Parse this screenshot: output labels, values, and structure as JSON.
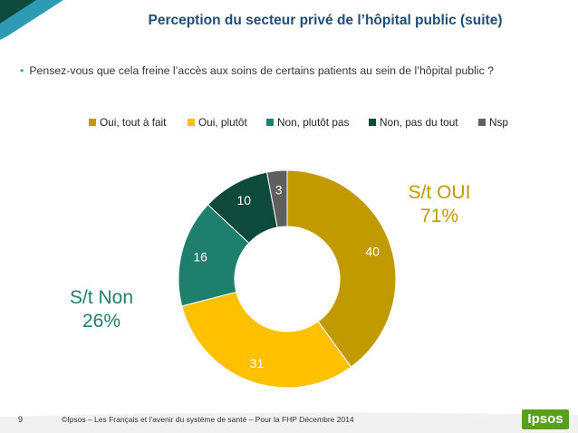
{
  "header": {
    "title": "Perception du secteur privé de l’hôpital public (suite)"
  },
  "question": {
    "bullet": "•",
    "text": "Pensez-vous que cela freine l’accès aux soins de certains patients au sein de l’hôpital public ?"
  },
  "chart_data": {
    "type": "pie",
    "donut": true,
    "categories": [
      "Oui, tout à fait",
      "Oui, plutôt",
      "Non, plutôt pas",
      "Non, pas du tout",
      "Nsp"
    ],
    "values": [
      40,
      31,
      16,
      10,
      3
    ],
    "colors": [
      "#c19a00",
      "#ffc000",
      "#1e7f6c",
      "#0d4a3c",
      "#5f5f5f"
    ],
    "label_colors": [
      "#ffffff",
      "#ffffff",
      "#ffffff",
      "#ffffff",
      "#ffffff"
    ],
    "legend_position": "top",
    "annotations": [
      {
        "line1": "S/t OUI",
        "line2": "71%",
        "color": "#c19a00"
      },
      {
        "line1": "S/t Non",
        "line2": "26%",
        "color": "#1e7f6c"
      }
    ]
  },
  "footer": {
    "page_number": "9",
    "text": "©Ipsos – Les Français et l’avenir du système de santé – Pour la FHP  Décembre 2014",
    "logo": "Ipsos",
    "logo_color": "#5a9e1e"
  },
  "decor": {
    "bar_dark": "#0d4a3c",
    "bar_light": "#2e9bb5"
  }
}
